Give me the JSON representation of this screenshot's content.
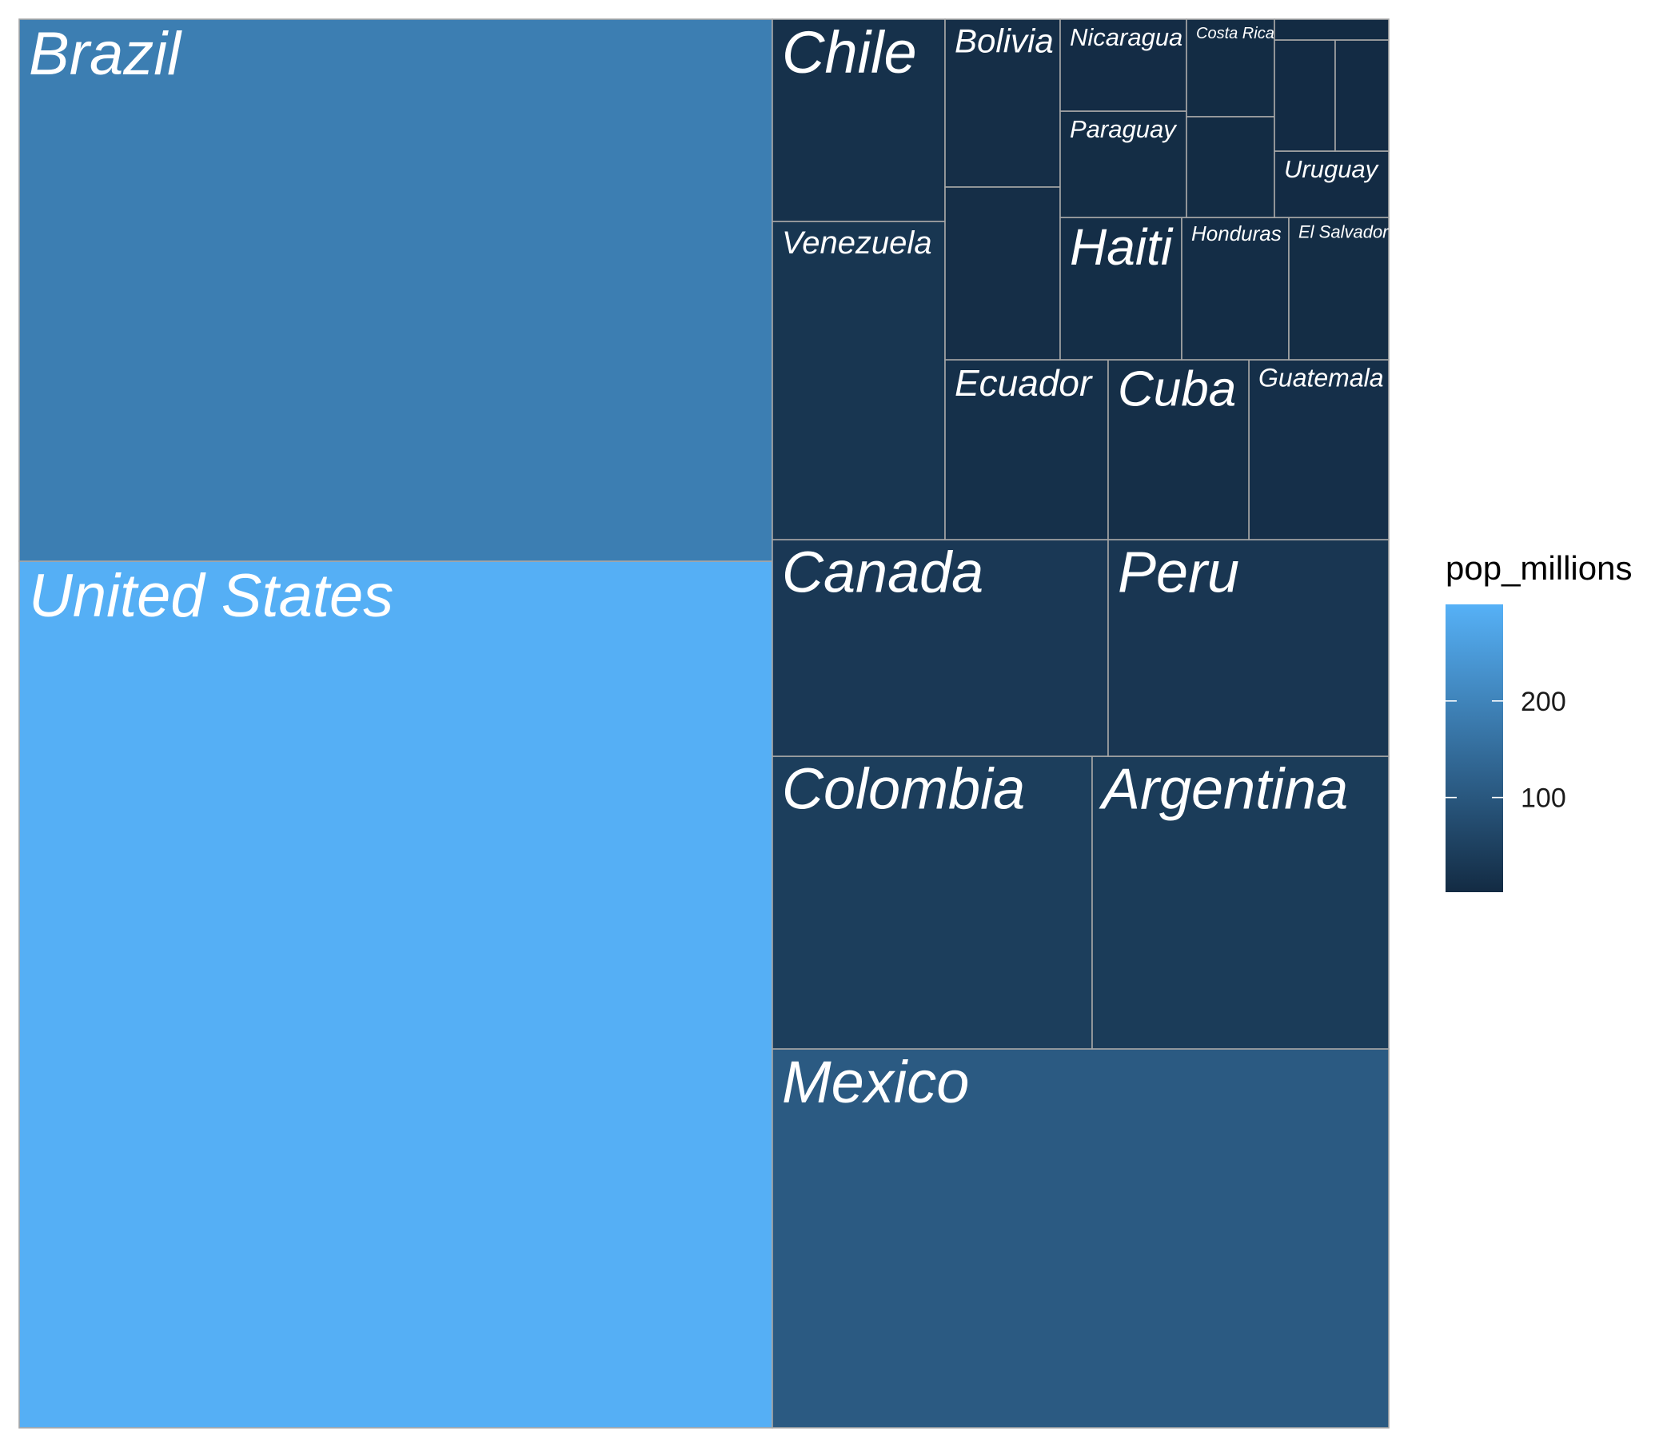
{
  "chart_data": {
    "type": "treemap",
    "value_field": "pop_millions",
    "legend": {
      "title": "pop_millions",
      "placement": "right",
      "breaks": [
        100,
        200
      ],
      "low_color": "#132B43",
      "high_color": "#56B1F7",
      "range": [
        2,
        300
      ]
    },
    "items": [
      {
        "label": "United States",
        "value": 296
      },
      {
        "label": "Brazil",
        "value": 186
      },
      {
        "label": "Mexico",
        "value": 107
      },
      {
        "label": "Colombia",
        "value": 44
      },
      {
        "label": "Argentina",
        "value": 39
      },
      {
        "label": "Canada",
        "value": 32
      },
      {
        "label": "Peru",
        "value": 27
      },
      {
        "label": "Venezuela",
        "value": 26
      },
      {
        "label": "Chile",
        "value": 16
      },
      {
        "label": "Ecuador",
        "value": 13
      },
      {
        "label": "Guatemala",
        "value": 12
      },
      {
        "label": "Cuba",
        "value": 11
      },
      {
        "label": "Bolivia",
        "value": 9
      },
      {
        "label": "",
        "value": 9
      },
      {
        "label": "Haiti",
        "value": 8
      },
      {
        "label": "Honduras",
        "value": 7
      },
      {
        "label": "El Salvador",
        "value": 6
      },
      {
        "label": "Paraguay",
        "value": 6
      },
      {
        "label": "Nicaragua",
        "value": 5
      },
      {
        "label": "Costa Rica",
        "value": 4
      },
      {
        "label": "",
        "value": 4
      },
      {
        "label": "Uruguay",
        "value": 3
      },
      {
        "label": "",
        "value": 3
      },
      {
        "label": "",
        "value": 3
      },
      {
        "label": "",
        "value": 1
      }
    ]
  }
}
